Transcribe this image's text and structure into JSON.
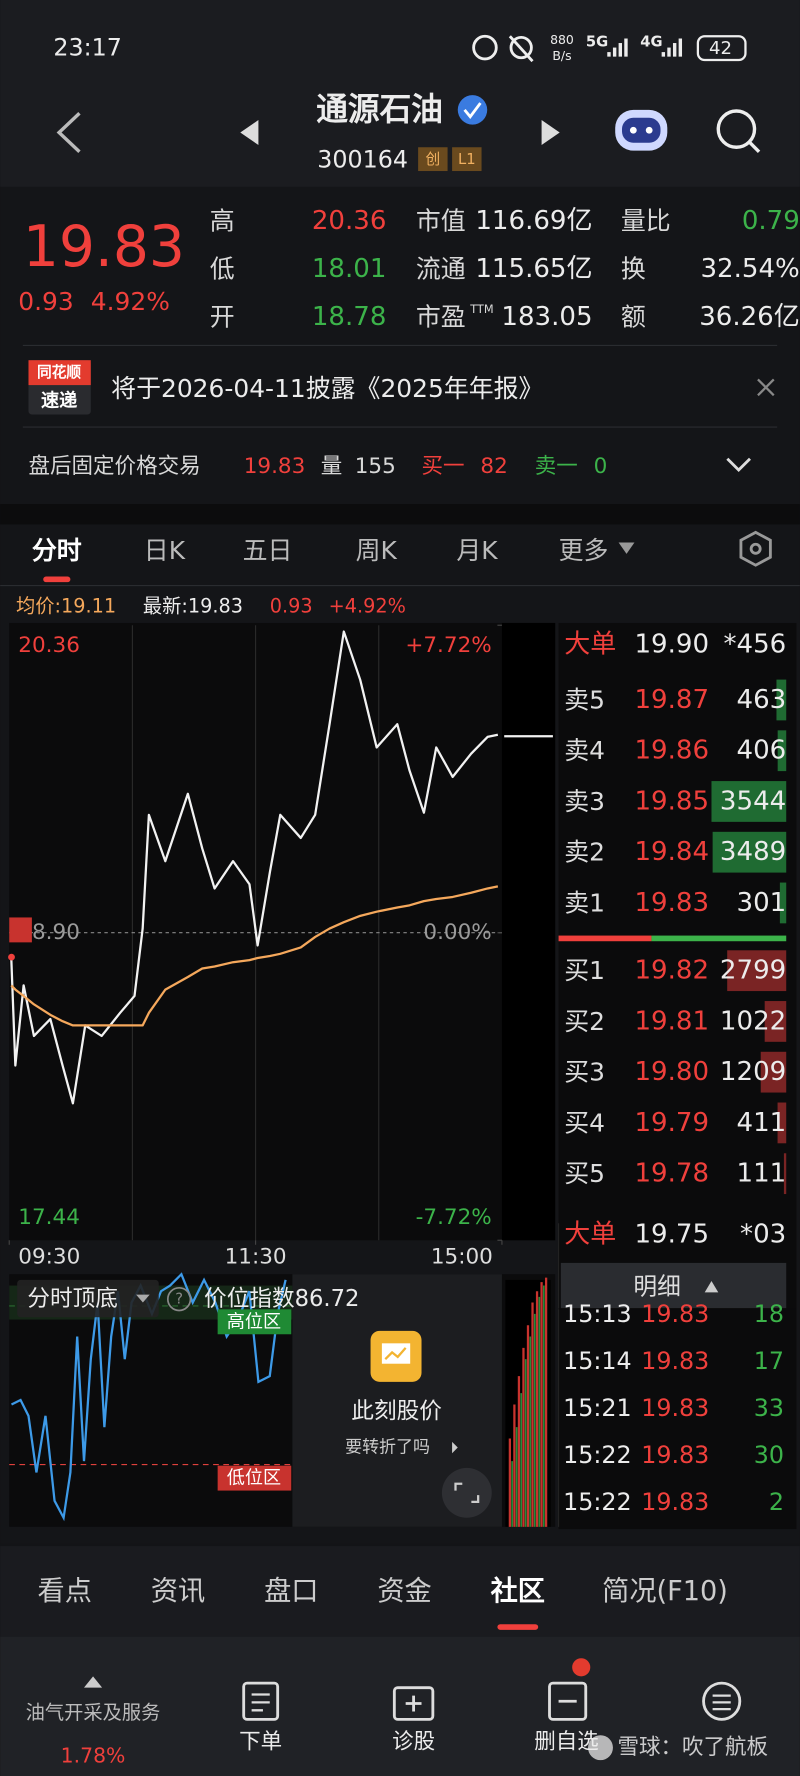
{
  "status_bar": {
    "time": "23:17",
    "net_speed": "880",
    "net_unit": "B/s",
    "signal1": "5G",
    "signal2": "4G",
    "battery": "42"
  },
  "header": {
    "name": "通源石油",
    "code": "300164",
    "badges": [
      "创",
      "L1"
    ]
  },
  "quote": {
    "price": "19.83",
    "change": "0.93",
    "change_pct": "4.92%",
    "stats": [
      [
        {
          "label": "高",
          "value": "20.36",
          "tone": "up"
        },
        {
          "label": "市值",
          "value": "116.69亿",
          "tone": "flat"
        },
        {
          "label": "量比",
          "value": "0.79",
          "tone": "down"
        }
      ],
      [
        {
          "label": "低",
          "value": "18.01",
          "tone": "down"
        },
        {
          "label": "流通",
          "value": "115.65亿",
          "tone": "flat"
        },
        {
          "label": "换",
          "value": "32.54%",
          "tone": "flat"
        }
      ],
      [
        {
          "label": "开",
          "value": "18.78",
          "tone": "down"
        },
        {
          "label": "市盈",
          "sup": "TTM",
          "value": "183.05",
          "tone": "flat"
        },
        {
          "label": "额",
          "value": "36.26亿",
          "tone": "flat"
        }
      ]
    ]
  },
  "notice": {
    "logo_top": "同花顺",
    "logo_bottom": "速递",
    "text": "将于2026-04-11披露《2025年年报》"
  },
  "after_hours": {
    "label": "盘后固定价格交易",
    "price": "19.83",
    "vol_label": "量",
    "vol": "155",
    "bid_label": "买一",
    "bid": "82",
    "ask_label": "卖一",
    "ask": "0"
  },
  "tabs": {
    "items": [
      "分时",
      "日K",
      "五日",
      "周K",
      "月K",
      "更多"
    ],
    "active": 0
  },
  "info_row": {
    "avg": "均价:19.11",
    "latest": "最新:19.83",
    "change": "0.93",
    "change_pct": "+4.92%"
  },
  "chart_data": {
    "type": "line",
    "x": [
      1,
      3,
      7,
      12,
      20,
      26,
      31,
      37,
      45,
      54,
      61,
      65,
      68,
      76,
      87,
      94,
      100,
      109,
      117,
      121,
      127,
      132,
      142,
      149,
      156,
      163,
      171,
      179,
      189,
      195,
      202,
      208,
      216,
      225,
      233,
      238
    ],
    "series": [
      {
        "color": "#f2f2f2",
        "values": [
          18.78,
          18.27,
          18.65,
          18.41,
          18.49,
          18.27,
          18.09,
          18.46,
          18.41,
          18.52,
          18.6,
          18.92,
          19.46,
          19.24,
          19.56,
          19.3,
          19.11,
          19.24,
          19.13,
          18.84,
          19.19,
          19.46,
          19.35,
          19.46,
          19.89,
          20.33,
          20.1,
          19.78,
          19.89,
          19.67,
          19.47,
          19.78,
          19.64,
          19.75,
          19.83,
          19.84
        ]
      },
      {
        "color": "#f5a85c",
        "values": [
          18.65,
          18.63,
          18.6,
          18.56,
          18.51,
          18.48,
          18.46,
          18.46,
          18.46,
          18.46,
          18.46,
          18.46,
          18.52,
          18.63,
          18.69,
          18.73,
          18.74,
          18.76,
          18.77,
          18.78,
          18.79,
          18.8,
          18.83,
          18.88,
          18.92,
          18.95,
          18.98,
          19.0,
          19.02,
          19.03,
          19.05,
          19.06,
          19.07,
          19.09,
          19.11,
          19.12
        ]
      }
    ],
    "xlim": [
      0,
      240
    ],
    "xticks": [
      {
        "value": 0,
        "label": "09:30"
      },
      {
        "value": 120,
        "label": "11:30"
      },
      {
        "value": 240,
        "label": "15:00"
      }
    ],
    "ylim": [
      17.44,
      20.36
    ],
    "yticks": [
      20.36,
      {
        "value": 18.9,
        "label": "18.90"
      },
      17.44
    ],
    "y2lim": [
      -7.72,
      7.72
    ],
    "y2ticks": [
      {
        "value": 7.72,
        "label": "+7.72%"
      },
      {
        "value": 0,
        "label": "0.00%"
      },
      {
        "value": -7.72,
        "label": "-7.72%"
      }
    ],
    "grid": true
  },
  "order_book": {
    "big_top": {
      "label": "大单",
      "price": "19.90",
      "vol": "*456"
    },
    "asks": [
      {
        "label": "卖5",
        "price": "19.87",
        "vol": 463
      },
      {
        "label": "卖4",
        "price": "19.86",
        "vol": 406
      },
      {
        "label": "卖3",
        "price": "19.85",
        "vol": 3544
      },
      {
        "label": "卖2",
        "price": "19.84",
        "vol": 3489
      },
      {
        "label": "卖1",
        "price": "19.83",
        "vol": 301
      }
    ],
    "bids": [
      {
        "label": "买1",
        "price": "19.82",
        "vol": 2799
      },
      {
        "label": "买2",
        "price": "19.81",
        "vol": 1022
      },
      {
        "label": "买3",
        "price": "19.80",
        "vol": 1209
      },
      {
        "label": "买4",
        "price": "19.79",
        "vol": 411
      },
      {
        "label": "买5",
        "price": "19.78",
        "vol": 111
      }
    ],
    "big_bottom": {
      "label": "大单",
      "price": "19.75",
      "vol": "*03"
    }
  },
  "trades": {
    "header": "明细",
    "rows": [
      [
        "15:13",
        "19.83",
        "18"
      ],
      [
        "15:14",
        "19.83",
        "17"
      ],
      [
        "15:21",
        "19.83",
        "33"
      ],
      [
        "15:22",
        "19.83",
        "30"
      ],
      [
        "15:22",
        "19.83",
        "2"
      ]
    ]
  },
  "indicator": {
    "name": "分时顶底",
    "index": "价位指数86.72",
    "high_zone": "高位区",
    "low_zone": "低位区",
    "ad_title": "此刻股价",
    "ad_sub": "要转折了吗"
  },
  "sections": {
    "items": [
      "看点",
      "资讯",
      "盘口",
      "资金",
      "社区",
      "简况(F10)"
    ],
    "active": 4
  },
  "bottom_bar": {
    "sector": "油气开采及服务",
    "sector_change": "1.78%",
    "actions": [
      "下单",
      "诊股",
      "删自选"
    ],
    "watermark": "雪球：吹了航板"
  }
}
